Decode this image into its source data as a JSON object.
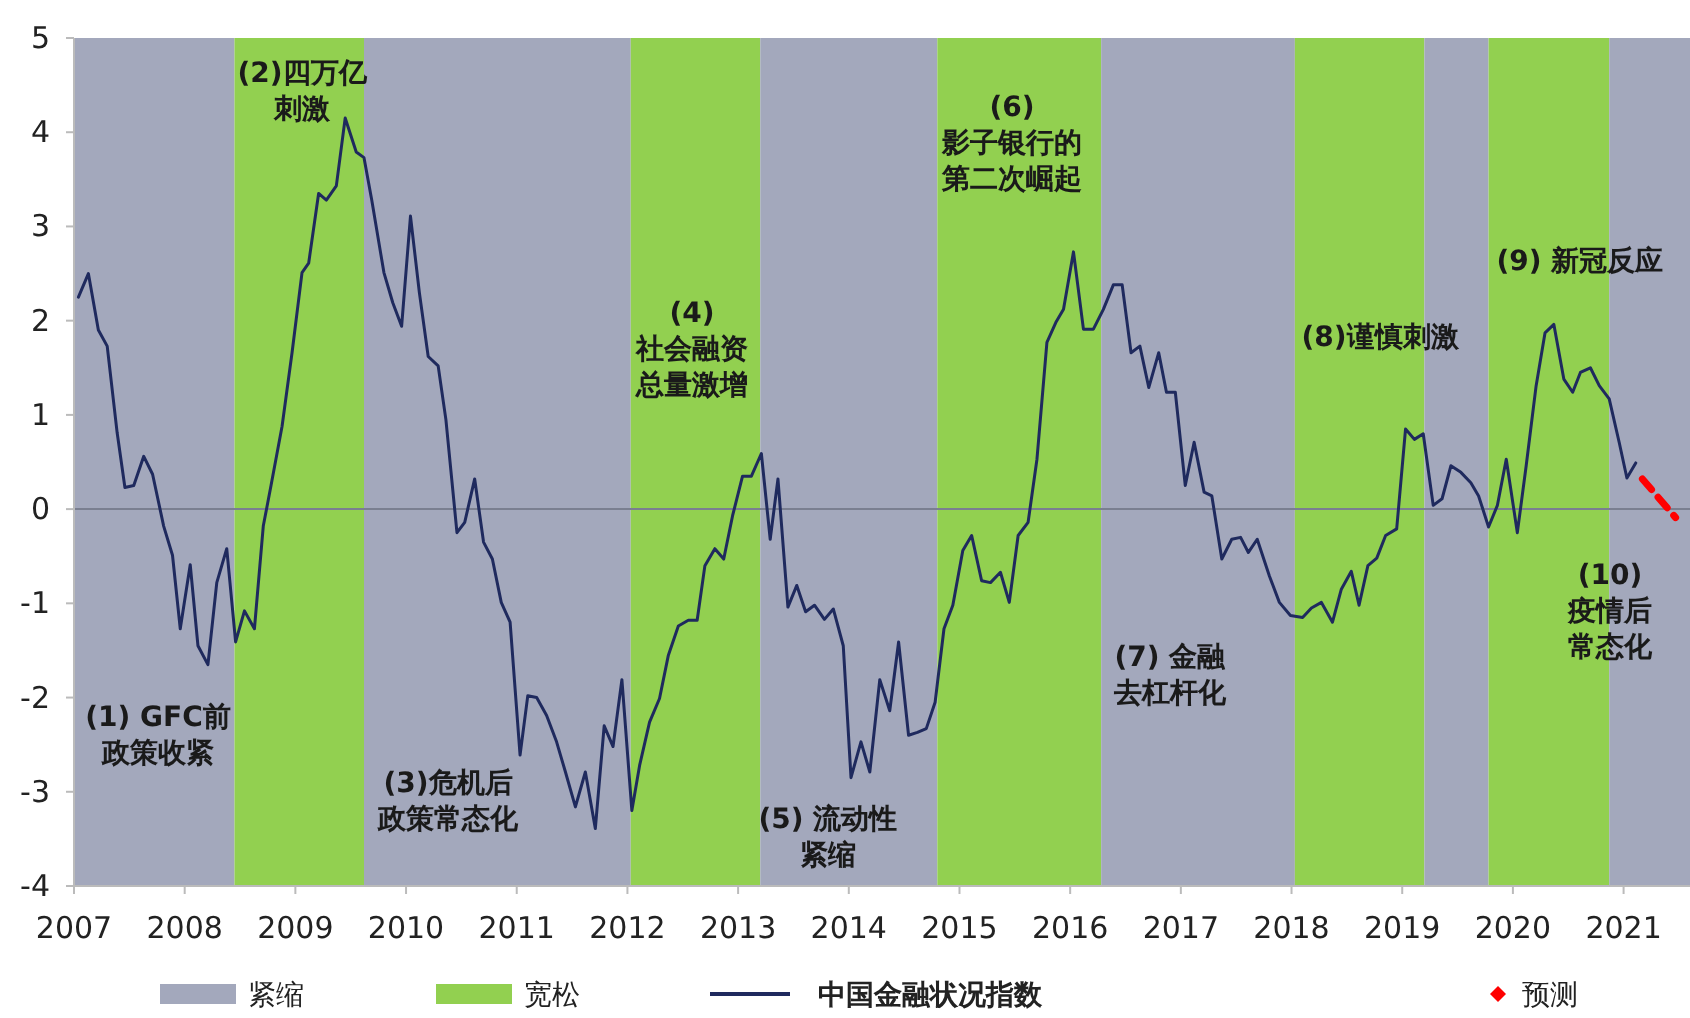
{
  "chart_data": {
    "type": "line",
    "xlim": [
      2007,
      2021.6
    ],
    "xticks": [
      2007,
      2008,
      2009,
      2010,
      2011,
      2012,
      2013,
      2014,
      2015,
      2016,
      2017,
      2018,
      2019,
      2020,
      2021
    ],
    "ylim": [
      -4,
      5
    ],
    "yticks": [
      -4,
      -3,
      -2,
      -1,
      0,
      1,
      2,
      3,
      4,
      5
    ],
    "grid": false,
    "legend": "bottom",
    "series": [
      {
        "name": "中国金融状况指数",
        "color": "#1f2a5e",
        "line_style": "solid",
        "x": [
          2007.04,
          2007.13,
          2007.22,
          2007.3,
          2007.39,
          2007.46,
          2007.54,
          2007.63,
          2007.71,
          2007.81,
          2007.89,
          2007.96,
          2008.05,
          2008.12,
          2008.21,
          2008.29,
          2008.38,
          2008.46,
          2008.54,
          2008.63,
          2008.71,
          2008.78,
          2008.88,
          2008.97,
          2009.06,
          2009.12,
          2009.21,
          2009.28,
          2009.37,
          2009.45,
          2009.55,
          2009.62,
          2009.69,
          2009.8,
          2009.88,
          2009.96,
          2010.04,
          2010.12,
          2010.2,
          2010.29,
          2010.36,
          2010.46,
          2010.53,
          2010.62,
          2010.7,
          2010.78,
          2010.86,
          2010.94,
          2011.03,
          2011.1,
          2011.18,
          2011.27,
          2011.36,
          2011.44,
          2011.53,
          2011.62,
          2011.71,
          2011.79,
          2011.87,
          2011.95,
          2012.04,
          2012.11,
          2012.2,
          2012.29,
          2012.37,
          2012.46,
          2012.55,
          2012.63,
          2012.7,
          2012.79,
          2012.87,
          2012.95,
          2013.04,
          2013.12,
          2013.21,
          2013.29,
          2013.36,
          2013.45,
          2013.53,
          2013.61,
          2013.69,
          2013.78,
          2013.86,
          2013.95,
          2014.02,
          2014.11,
          2014.19,
          2014.28,
          2014.37,
          2014.45,
          2014.54,
          2014.62,
          2014.7,
          2014.78,
          2014.86,
          2014.94,
          2015.03,
          2015.11,
          2015.2,
          2015.28,
          2015.37,
          2015.45,
          2015.53,
          2015.62,
          2015.7,
          2015.79,
          2015.87,
          2015.94,
          2016.03,
          2016.12,
          2016.21,
          2016.3,
          2016.39,
          2016.47,
          2016.55,
          2016.63,
          2016.71,
          2016.8,
          2016.87,
          2016.95,
          2017.04,
          2017.12,
          2017.21,
          2017.28,
          2017.37,
          2017.46,
          2017.54,
          2017.61,
          2017.69,
          2017.8,
          2017.89,
          2017.99,
          2018.1,
          2018.18,
          2018.27,
          2018.37,
          2018.45,
          2018.54,
          2018.61,
          2018.69,
          2018.77,
          2018.85,
          2018.95,
          2019.03,
          2019.11,
          2019.19,
          2019.28,
          2019.36,
          2019.44,
          2019.53,
          2019.62,
          2019.69,
          2019.78,
          2019.86,
          2019.94,
          2020.04,
          2020.12,
          2020.21,
          2020.29,
          2020.37,
          2020.46,
          2020.54,
          2020.61,
          2020.7,
          2020.78,
          2020.87,
          2020.96,
          2021.03,
          2021.11
        ],
        "values": [
          2.25,
          2.5,
          1.9,
          1.73,
          0.81,
          0.23,
          0.25,
          0.56,
          0.37,
          -0.18,
          -0.49,
          -1.27,
          -0.59,
          -1.45,
          -1.65,
          -0.78,
          -0.42,
          -1.41,
          -1.08,
          -1.27,
          -0.18,
          0.25,
          0.88,
          1.66,
          2.51,
          2.61,
          3.35,
          3.28,
          3.43,
          4.15,
          3.79,
          3.73,
          3.28,
          2.51,
          2.19,
          1.94,
          3.11,
          2.3,
          1.62,
          1.52,
          0.95,
          -0.25,
          -0.14,
          0.32,
          -0.35,
          -0.53,
          -0.99,
          -1.2,
          -2.61,
          -1.98,
          -2.0,
          -2.19,
          -2.47,
          -2.79,
          -3.16,
          -2.79,
          -3.39,
          -2.3,
          -2.52,
          -1.81,
          -3.2,
          -2.72,
          -2.26,
          -2.01,
          -1.55,
          -1.24,
          -1.18,
          -1.18,
          -0.6,
          -0.42,
          -0.53,
          -0.07,
          0.35,
          0.35,
          0.59,
          -0.32,
          0.32,
          -1.04,
          -0.81,
          -1.09,
          -1.02,
          -1.17,
          -1.06,
          -1.45,
          -2.85,
          -2.47,
          -2.79,
          -1.81,
          -2.14,
          -1.41,
          -2.4,
          -2.37,
          -2.33,
          -2.05,
          -1.27,
          -1.02,
          -0.44,
          -0.28,
          -0.76,
          -0.78,
          -0.67,
          -0.99,
          -0.28,
          -0.14,
          0.53,
          1.77,
          1.98,
          2.12,
          2.73,
          1.91,
          1.91,
          2.12,
          2.38,
          2.38,
          1.66,
          1.73,
          1.29,
          1.66,
          1.24,
          1.24,
          0.25,
          0.71,
          0.18,
          0.14,
          -0.53,
          -0.32,
          -0.3,
          -0.46,
          -0.32,
          -0.71,
          -0.99,
          -1.13,
          -1.15,
          -1.05,
          -0.99,
          -1.2,
          -0.85,
          -0.66,
          -1.02,
          -0.6,
          -0.52,
          -0.28,
          -0.21,
          0.85,
          0.74,
          0.8,
          0.04,
          0.11,
          0.46,
          0.39,
          0.28,
          0.14,
          -0.19,
          0.04,
          0.53,
          -0.25,
          0.46,
          1.31,
          1.87,
          1.96,
          1.38,
          1.24,
          1.45,
          1.5,
          1.31,
          1.17,
          0.71,
          0.33,
          0.49
        ]
      },
      {
        "name": "预测",
        "color": "#ff0000",
        "line_style": "dashed",
        "x": [
          2021.17,
          2021.47
        ],
        "values": [
          0.32,
          -0.09
        ]
      }
    ],
    "bands": [
      {
        "axis": "x",
        "from": 2007,
        "to": 2008.45,
        "label": "紧缩",
        "color": "#a3a8bc"
      },
      {
        "axis": "x",
        "from": 2008.45,
        "to": 2009.62,
        "label": "宽松",
        "color": "#92d050"
      },
      {
        "axis": "x",
        "from": 2009.62,
        "to": 2012.03,
        "color": "#a3a8bc"
      },
      {
        "axis": "x",
        "from": 2012.03,
        "to": 2013.2,
        "color": "#92d050"
      },
      {
        "axis": "x",
        "from": 2013.2,
        "to": 2014.8,
        "color": "#a3a8bc"
      },
      {
        "axis": "x",
        "from": 2014.8,
        "to": 2016.28,
        "color": "#92d050"
      },
      {
        "axis": "x",
        "from": 2016.28,
        "to": 2018.03,
        "color": "#a3a8bc"
      },
      {
        "axis": "x",
        "from": 2018.03,
        "to": 2019.2,
        "color": "#92d050"
      },
      {
        "axis": "x",
        "from": 2019.2,
        "to": 2019.78,
        "color": "#a3a8bc"
      },
      {
        "axis": "x",
        "from": 2019.78,
        "to": 2020.87,
        "color": "#92d050"
      },
      {
        "axis": "x",
        "from": 2020.87,
        "to": 2021.6,
        "color": "#a3a8bc"
      }
    ],
    "ref_lines": [
      {
        "axis": "y",
        "value": 0,
        "color": "#7a7f90"
      }
    ],
    "annotations": [
      "(1) GFC前政策收紧",
      "(2)四万亿刺激",
      "(3)危机后政策常态化",
      "(4)社会融资总量激增",
      "(5) 流动性紧缩",
      "(6)影子银行的第二次崛起",
      "(7) 金融去杠杆化",
      "(8)谨慎刺激",
      "(9) 新冠反应",
      "(10)疫情后常态化"
    ]
  }
}
